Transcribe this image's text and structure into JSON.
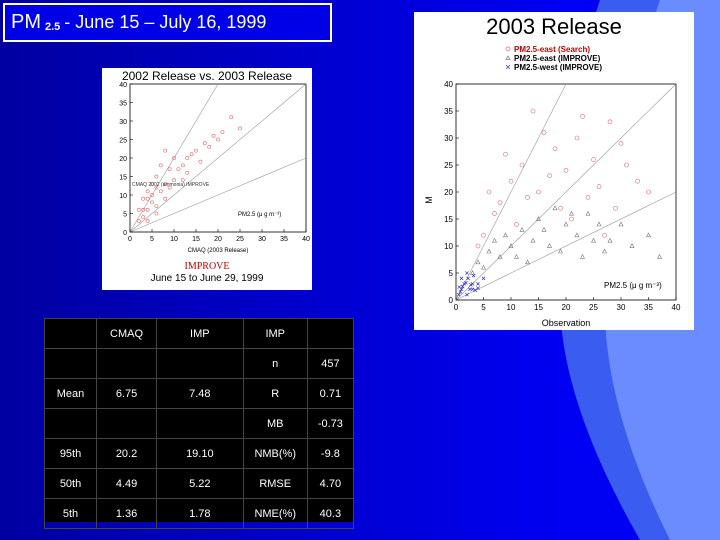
{
  "header": {
    "pm": "PM",
    "sub": "2.5",
    "dates": "- June 15 –  July 16, 1999"
  },
  "left_chart": {
    "heading": "2002 Release vs. 2003 Release",
    "improve_label": "IMPROVE",
    "caption": "June 15  to  June 29,  1999",
    "xlabel": "CMAQ (2003 Release)",
    "legend_text": "CMAQ 2002 (ammonia) IMPROVE",
    "species_label": "PM2.5 (μ g m⁻³)"
  },
  "right_chart": {
    "title": "2003 Release",
    "xlabel": "Observation",
    "ylabel": "M",
    "species_label": "PM2.5 (μ g m⁻³)",
    "legend": [
      "PM2.5-east (Search)",
      "PM2.5-east (IMPROVE)",
      "PM2.5-west (IMPROVE)"
    ]
  },
  "colors": {
    "background": "#0000cc",
    "curve": "#4d79ff",
    "east_search": "#e06666",
    "east_improve": "#777777",
    "west_improve": "#3333cc"
  },
  "chart_data": [
    {
      "type": "scatter",
      "title": "2002 Release vs. 2003 Release",
      "xlabel": "CMAQ (2003 Release)",
      "xlim": [
        0,
        40
      ],
      "ylim": [
        0,
        40
      ],
      "xticks": [
        0,
        5,
        10,
        15,
        20,
        25,
        30,
        35,
        40
      ],
      "yticks": [
        0,
        5,
        10,
        15,
        20,
        25,
        30,
        35,
        40
      ],
      "reference_lines": [
        "1:2",
        "1:1",
        "2:1"
      ],
      "series": [
        {
          "values": [
            [
              2,
              3
            ],
            [
              3,
              4
            ],
            [
              4,
              6
            ],
            [
              5,
              8
            ],
            [
              6,
              7
            ],
            [
              3,
              6
            ],
            [
              4,
              9
            ],
            [
              5,
              10
            ],
            [
              6,
              12
            ],
            [
              7,
              11
            ],
            [
              8,
              13
            ],
            [
              9,
              12
            ],
            [
              10,
              14
            ],
            [
              11,
              17
            ],
            [
              12,
              18
            ],
            [
              13,
              16
            ],
            [
              15,
              22
            ],
            [
              17,
              24
            ],
            [
              19,
              26
            ],
            [
              21,
              27
            ],
            [
              23,
              31
            ],
            [
              7,
              18
            ],
            [
              8,
              22
            ],
            [
              9,
              17
            ],
            [
              5,
              13
            ],
            [
              6,
              15
            ],
            [
              4,
              11
            ],
            [
              10,
              20
            ],
            [
              14,
              21
            ],
            [
              16,
              19
            ],
            [
              18,
              23
            ],
            [
              20,
              25
            ],
            [
              25,
              28
            ],
            [
              12,
              14
            ],
            [
              3,
              9
            ],
            [
              2,
              6
            ],
            [
              4,
              3
            ],
            [
              6,
              5
            ],
            [
              8,
              9
            ],
            [
              13,
              20
            ]
          ]
        }
      ]
    },
    {
      "type": "scatter",
      "title": "2003 Release",
      "xlabel": "Observation",
      "xlim": [
        0,
        40
      ],
      "ylim": [
        0,
        40
      ],
      "xticks": [
        0,
        5,
        10,
        15,
        20,
        25,
        30,
        35,
        40
      ],
      "yticks": [
        0,
        5,
        10,
        15,
        20,
        25,
        30,
        35,
        40
      ],
      "reference_lines": [
        "1:2",
        "1:1",
        "2:1"
      ],
      "legend_position": "top",
      "series": [
        {
          "name": "PM2.5-east (Search)",
          "values": [
            [
              5,
              12
            ],
            [
              8,
              18
            ],
            [
              10,
              22
            ],
            [
              12,
              25
            ],
            [
              15,
              20
            ],
            [
              18,
              28
            ],
            [
              20,
              24
            ],
            [
              22,
              30
            ],
            [
              25,
              26
            ],
            [
              28,
              33
            ],
            [
              30,
              29
            ],
            [
              33,
              22
            ],
            [
              14,
              35
            ],
            [
              16,
              31
            ],
            [
              9,
              27
            ],
            [
              7,
              16
            ],
            [
              11,
              14
            ],
            [
              13,
              19
            ],
            [
              17,
              23
            ],
            [
              19,
              17
            ],
            [
              21,
              15
            ],
            [
              24,
              19
            ],
            [
              26,
              21
            ],
            [
              29,
              17
            ],
            [
              31,
              25
            ],
            [
              35,
              20
            ],
            [
              6,
              20
            ],
            [
              4,
              10
            ],
            [
              23,
              34
            ],
            [
              27,
              12
            ]
          ]
        },
        {
          "name": "PM2.5-east (IMPROVE)",
          "values": [
            [
              3,
              5
            ],
            [
              5,
              6
            ],
            [
              6,
              9
            ],
            [
              8,
              8
            ],
            [
              9,
              12
            ],
            [
              10,
              10
            ],
            [
              12,
              13
            ],
            [
              14,
              11
            ],
            [
              15,
              15
            ],
            [
              16,
              13
            ],
            [
              18,
              17
            ],
            [
              20,
              14
            ],
            [
              22,
              12
            ],
            [
              24,
              16
            ],
            [
              25,
              11
            ],
            [
              27,
              9
            ],
            [
              30,
              14
            ],
            [
              32,
              10
            ],
            [
              35,
              12
            ],
            [
              37,
              8
            ],
            [
              7,
              11
            ],
            [
              11,
              8
            ],
            [
              13,
              7
            ],
            [
              17,
              10
            ],
            [
              19,
              9
            ],
            [
              21,
              16
            ],
            [
              23,
              8
            ],
            [
              26,
              14
            ],
            [
              28,
              11
            ],
            [
              4,
              7
            ]
          ]
        },
        {
          "name": "PM2.5-west (IMPROVE)",
          "values": [
            [
              0.5,
              1
            ],
            [
              1,
              2
            ],
            [
              1.5,
              3
            ],
            [
              2,
              1
            ],
            [
              2.5,
              2
            ],
            [
              3,
              3
            ],
            [
              1,
              4
            ],
            [
              2,
              5
            ],
            [
              3,
              2
            ],
            [
              4,
              3
            ],
            [
              0.8,
              1.5
            ],
            [
              1.2,
              2.5
            ],
            [
              2.2,
              4
            ],
            [
              3.5,
              1.8
            ],
            [
              4,
              2.2
            ],
            [
              1.8,
              3.2
            ],
            [
              2.7,
              2.8
            ],
            [
              0.6,
              2.4
            ],
            [
              3.2,
              4.5
            ],
            [
              5,
              4
            ]
          ]
        }
      ]
    }
  ],
  "stats_table": {
    "headers": [
      "",
      "CMAQ",
      "IMP",
      "IMP",
      ""
    ],
    "rows": [
      [
        "",
        "",
        "",
        "n",
        "457"
      ],
      [
        "Mean",
        "6.75",
        "7.48",
        "R",
        "0.71"
      ],
      [
        "",
        "",
        "",
        "MB",
        "-0.73"
      ],
      [
        "95th",
        "20.2",
        "19.10",
        "NMB(%)",
        "-9.8"
      ],
      [
        "50th",
        "4.49",
        "5.22",
        "RMSE",
        "4.70"
      ],
      [
        "5th",
        "1.36",
        "1.78",
        "NME(%)",
        "40.3"
      ]
    ]
  }
}
